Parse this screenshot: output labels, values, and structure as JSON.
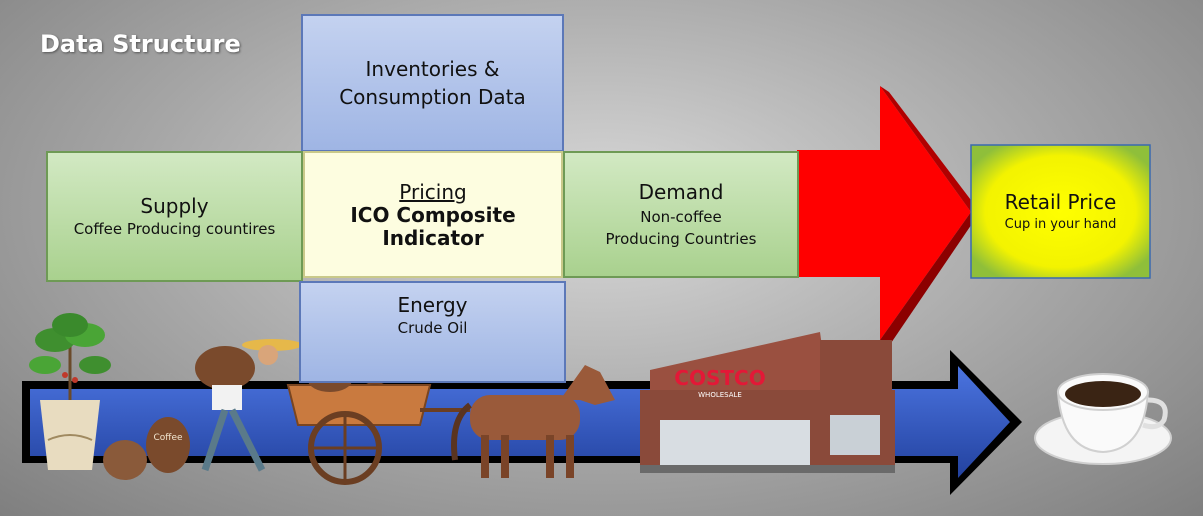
{
  "title": "Data Structure",
  "inventories": {
    "line1": "Inventories &",
    "line2": "Consumption Data"
  },
  "supply": {
    "title": "Supply",
    "subtitle": "Coffee Producing countires"
  },
  "pricing": {
    "title": "Pricing",
    "line1": "ICO Composite",
    "line2": "Indicator"
  },
  "demand": {
    "title": "Demand",
    "line1": "Non-coffee",
    "line2": "Producing Countries"
  },
  "energy": {
    "title": "Energy",
    "subtitle": "Crude Oil"
  },
  "retail": {
    "title": "Retail Price",
    "subtitle": "Cup in your hand"
  },
  "store_sign": {
    "brand": "COSTCO",
    "sub": "WHOLESALE"
  },
  "bag_label": "Coffee",
  "colors": {
    "red_arrow": "#ff0000",
    "blue_arrow": "#2f55c8",
    "retail_fill": "#ffff00"
  }
}
